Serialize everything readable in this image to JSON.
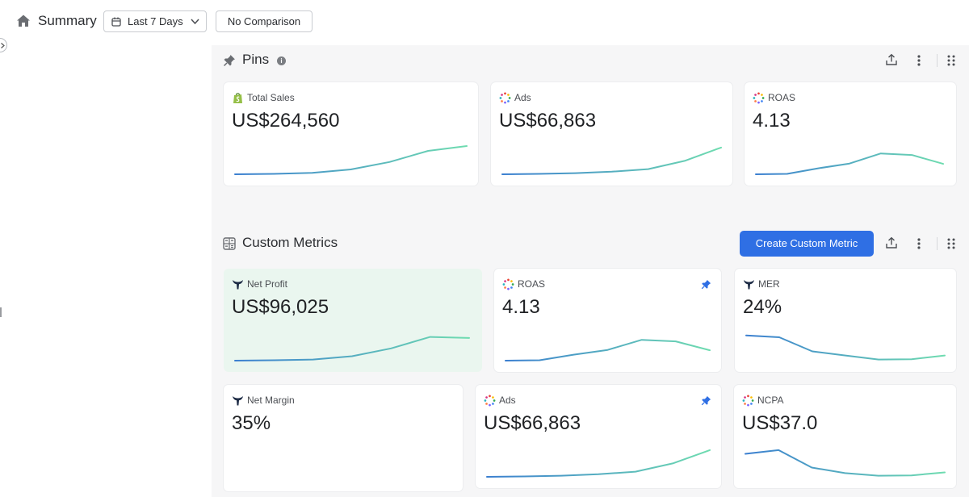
{
  "header": {
    "title": "Summary",
    "date_range": "Last 7 Days",
    "comparison": "No Comparison"
  },
  "colors": {
    "accent": "#2f6fe4",
    "spark_start": "#3b7fd0",
    "spark_end": "#6fdcb0",
    "highlight_bg": "#eaf6ef"
  },
  "pins": {
    "title": "Pins",
    "cards": [
      {
        "label": "Total Sales",
        "value": "US$264,560",
        "icon": "shopify-icon",
        "trend": [
          0.0,
          0.01,
          0.04,
          0.13,
          0.33,
          0.63,
          0.76
        ]
      },
      {
        "label": "Ads",
        "value": "US$66,863",
        "icon": "dotted-ring-icon",
        "trend": [
          0.0,
          0.01,
          0.03,
          0.07,
          0.14,
          0.36,
          0.72
        ]
      },
      {
        "label": "ROAS",
        "value": "4.13",
        "icon": "dotted-ring-icon",
        "trend": [
          0.0,
          0.01,
          0.16,
          0.29,
          0.56,
          0.52,
          0.28
        ]
      }
    ]
  },
  "custom_metrics": {
    "title": "Custom Metrics",
    "create_label": "Create Custom Metric",
    "cards": [
      {
        "label": "Net Profit",
        "value": "US$96,025",
        "icon": "triple-whale-icon",
        "pinned": false,
        "highlight": true,
        "trend": [
          0.0,
          0.01,
          0.03,
          0.12,
          0.33,
          0.64,
          0.61
        ]
      },
      {
        "label": "ROAS",
        "value": "4.13",
        "icon": "dotted-ring-icon",
        "pinned": true,
        "highlight": false,
        "trend": [
          0.0,
          0.01,
          0.16,
          0.29,
          0.56,
          0.52,
          0.28
        ]
      },
      {
        "label": "MER",
        "value": "24%",
        "icon": "triple-whale-icon",
        "pinned": false,
        "highlight": false,
        "trend": [
          0.68,
          0.63,
          0.25,
          0.14,
          0.03,
          0.04,
          0.14
        ]
      },
      {
        "label": "Net Margin",
        "value": "35%",
        "icon": "triple-whale-icon",
        "pinned": false,
        "highlight": false,
        "trend": []
      },
      {
        "label": "Ads",
        "value": "US$66,863",
        "icon": "dotted-ring-icon",
        "pinned": true,
        "highlight": false,
        "trend": [
          0.0,
          0.01,
          0.03,
          0.07,
          0.14,
          0.36,
          0.72
        ]
      },
      {
        "label": "NCPA",
        "value": "US$37.0",
        "icon": "dotted-ring-icon",
        "pinned": false,
        "highlight": false,
        "trend": [
          0.62,
          0.72,
          0.25,
          0.1,
          0.03,
          0.04,
          0.12
        ]
      }
    ]
  }
}
